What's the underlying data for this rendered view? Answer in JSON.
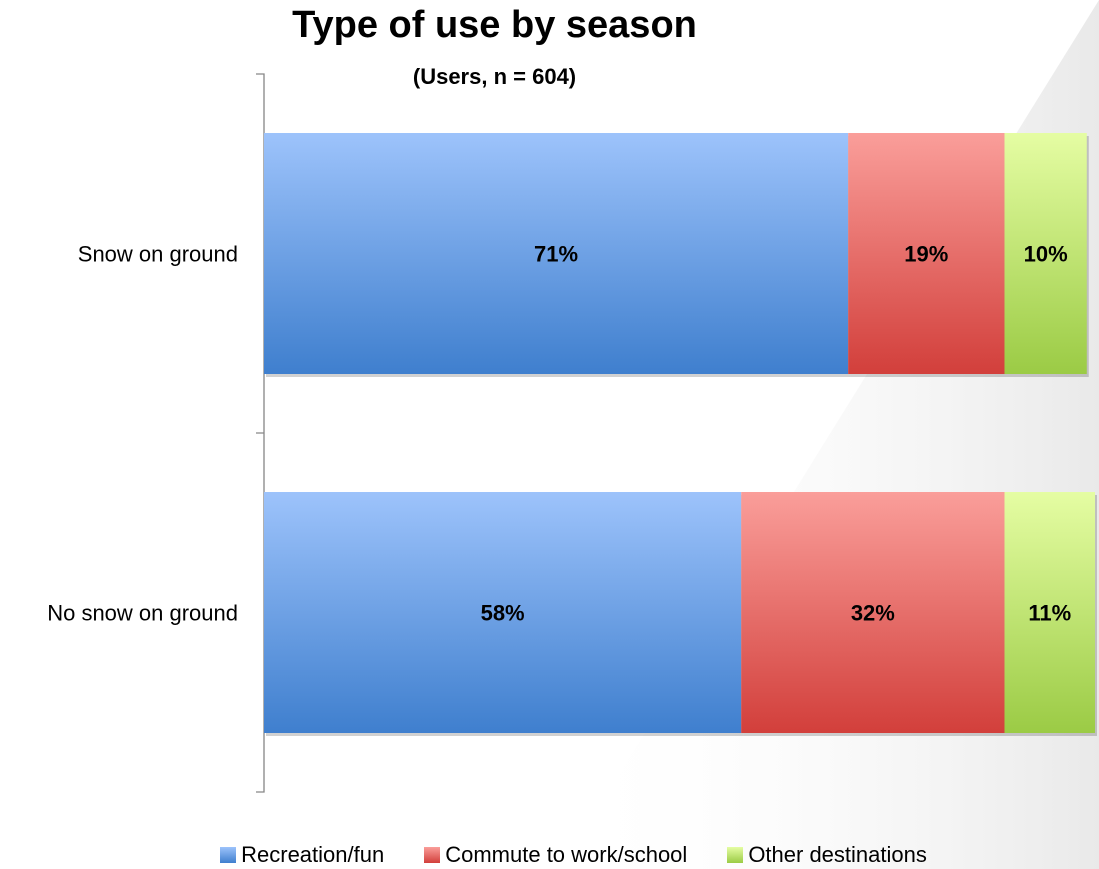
{
  "chart_data": {
    "type": "bar",
    "orientation": "horizontal",
    "stacked": true,
    "title": "Type of use by season",
    "subtitle": "(Users, n = 604)",
    "categories": [
      "Snow on ground",
      "No snow on ground"
    ],
    "series": [
      {
        "name": "Recreation/fun",
        "values": [
          71,
          58
        ],
        "labels": [
          "71%",
          "58%"
        ],
        "color_top": "#9dc3fb",
        "color_bottom": "#3f7fce"
      },
      {
        "name": "Commute to work/school",
        "values": [
          19,
          32
        ],
        "labels": [
          "19%",
          "32%"
        ],
        "color_top": "#fa9e9a",
        "color_bottom": "#d23f3b"
      },
      {
        "name": "Other destinations",
        "values": [
          10,
          11
        ],
        "labels": [
          "10%",
          "11%"
        ],
        "color_top": "#e5fda3",
        "color_bottom": "#9bcb45"
      }
    ],
    "xlim": [
      0,
      101
    ],
    "grid": false,
    "legend_position": "bottom"
  }
}
